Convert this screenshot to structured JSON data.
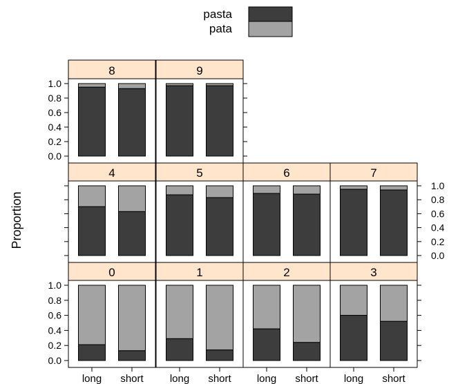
{
  "chart_data": {
    "type": "bar",
    "stacked": true,
    "proportional": true,
    "ylabel": "Proportion",
    "xlabel": "",
    "ylim": [
      0,
      1
    ],
    "y_ticks": [
      "0.0",
      "0.2",
      "0.4",
      "0.6",
      "0.8",
      "1.0"
    ],
    "categories": [
      "long",
      "short"
    ],
    "legend": {
      "placement": "top-center",
      "entries": [
        {
          "name": "pasta",
          "color": "#3d3d3d"
        },
        {
          "name": "pata",
          "color": "#a3a3a3"
        }
      ]
    },
    "colors": {
      "pasta": "#3d3d3d",
      "pata": "#a3a3a3",
      "strip": "#ffe5cc"
    },
    "panels": [
      {
        "label": "0",
        "pasta": [
          0.21,
          0.13
        ]
      },
      {
        "label": "1",
        "pasta": [
          0.29,
          0.14
        ]
      },
      {
        "label": "2",
        "pasta": [
          0.42,
          0.24
        ]
      },
      {
        "label": "3",
        "pasta": [
          0.6,
          0.52
        ]
      },
      {
        "label": "4",
        "pasta": [
          0.7,
          0.63
        ]
      },
      {
        "label": "5",
        "pasta": [
          0.87,
          0.83
        ]
      },
      {
        "label": "6",
        "pasta": [
          0.89,
          0.88
        ]
      },
      {
        "label": "7",
        "pasta": [
          0.95,
          0.94
        ]
      },
      {
        "label": "8",
        "pasta": [
          0.95,
          0.93
        ]
      },
      {
        "label": "9",
        "pasta": [
          0.97,
          0.97
        ]
      }
    ]
  }
}
